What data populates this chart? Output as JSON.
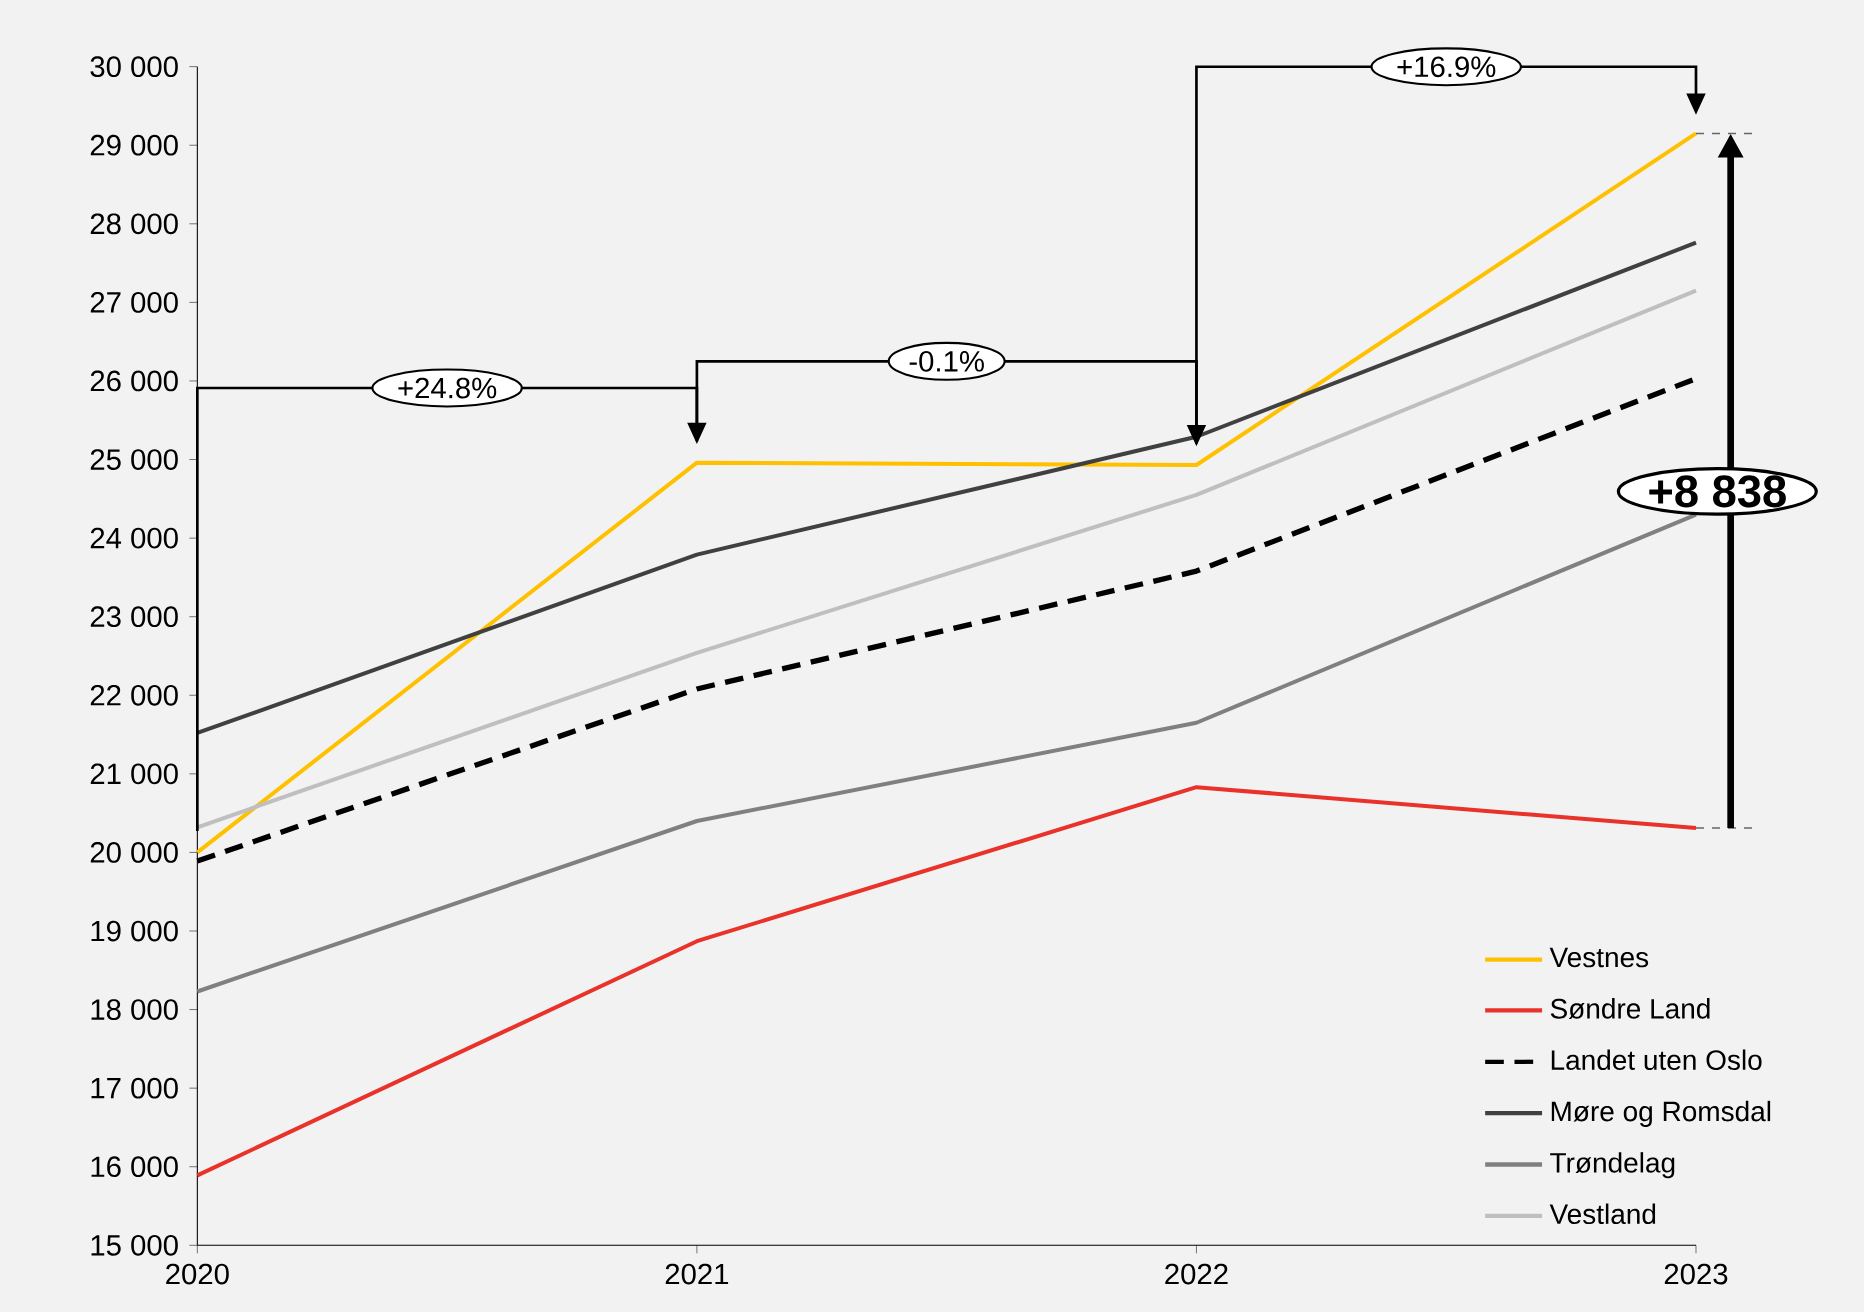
{
  "chart_data": {
    "type": "line",
    "x": [
      2020,
      2021,
      2022,
      2023
    ],
    "series": [
      {
        "name": "Vestnes",
        "color": "#ffc000",
        "values": [
          20000,
          24960,
          24930,
          29150
        ]
      },
      {
        "name": "Søndre Land",
        "color": "#e8322a",
        "values": [
          15890,
          18870,
          20830,
          20310
        ]
      },
      {
        "name": "Landet uten Oslo",
        "color": "#000000",
        "line_style": "dashed",
        "values": [
          19890,
          22080,
          23580,
          26030
        ]
      },
      {
        "name": "Møre og Romsdal",
        "color": "#404040",
        "values": [
          21520,
          23790,
          25290,
          27760
        ]
      },
      {
        "name": "Trøndelag",
        "color": "#808080",
        "values": [
          18230,
          20400,
          21650,
          24300
        ]
      },
      {
        "name": "Vestland",
        "color": "#bfbfbf",
        "values": [
          20320,
          22540,
          24550,
          27150
        ]
      }
    ],
    "xlim": [
      2020,
      2023
    ],
    "xticks": [
      2020,
      2021,
      2022,
      2023
    ],
    "ylim": [
      15000,
      30000
    ],
    "yticks": [
      {
        "value": 15000,
        "label": "15 000"
      },
      {
        "value": 16000,
        "label": "16 000"
      },
      {
        "value": 17000,
        "label": "17 000"
      },
      {
        "value": 18000,
        "label": "18 000"
      },
      {
        "value": 19000,
        "label": "19 000"
      },
      {
        "value": 20000,
        "label": "20 000"
      },
      {
        "value": 21000,
        "label": "21 000"
      },
      {
        "value": 22000,
        "label": "22 000"
      },
      {
        "value": 23000,
        "label": "23 000"
      },
      {
        "value": 24000,
        "label": "24 000"
      },
      {
        "value": 25000,
        "label": "25 000"
      },
      {
        "value": 26000,
        "label": "26 000"
      },
      {
        "value": 27000,
        "label": "27 000"
      },
      {
        "value": 28000,
        "label": "28 000"
      },
      {
        "value": 29000,
        "label": "29 000"
      },
      {
        "value": 30000,
        "label": "30 000"
      }
    ],
    "annotations": [
      "+24.8%",
      "-0.1%",
      "+16.9%",
      "+8 838"
    ],
    "grid": false,
    "legend": "bottom right",
    "marker": "none"
  }
}
